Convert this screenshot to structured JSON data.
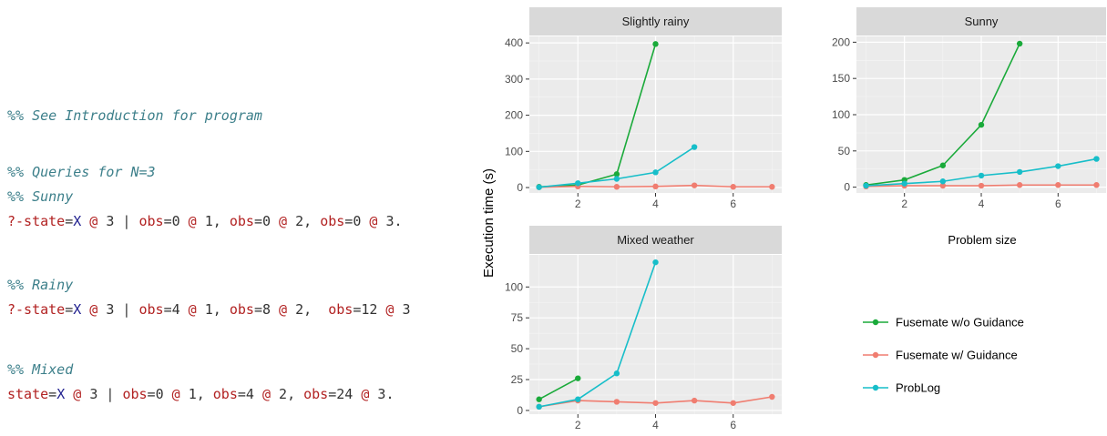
{
  "code": {
    "line1": "%% See Introduction for program",
    "line2": "%% Queries for N=3",
    "line3": "%% Sunny",
    "line5": "%% Rainy",
    "line7": "%% Mixed",
    "q_sunny": [
      "?-state",
      "=",
      "X",
      " @ ",
      "3",
      " | ",
      "obs",
      "=",
      "0",
      " @ ",
      "1",
      ", ",
      "obs",
      "=",
      "0",
      " @ ",
      "2",
      ", ",
      "obs",
      "=",
      "0",
      " @ ",
      "3",
      "."
    ],
    "q_rainy": [
      "?-state",
      "=",
      "X",
      " @ ",
      "3",
      " | ",
      "obs",
      "=",
      "4",
      " @ ",
      "1",
      ", ",
      "obs",
      "=",
      "8",
      " @ ",
      "2",
      ",  ",
      "obs",
      "=",
      "12",
      " @ ",
      "3"
    ],
    "q_mixed": [
      "state",
      "=",
      "X",
      " @ ",
      "3",
      " | ",
      "obs",
      "=",
      "0",
      " @ ",
      "1",
      ", ",
      "obs",
      "=",
      "4",
      " @ ",
      "2",
      ", ",
      "obs",
      "=",
      "24",
      " @ ",
      "3",
      "."
    ]
  },
  "colors": {
    "green": "#1aaa3a",
    "red": "#f07d70",
    "teal": "#17bec9",
    "panel_bg": "#ebebeb",
    "strip_bg": "#d9d9d9"
  },
  "chart_data": {
    "type": "line",
    "ylabel": "Execution time (s)",
    "xlabel": "Problem size",
    "legend": [
      {
        "name": "Fusemate w/o Guidance",
        "color": "#1aaa3a"
      },
      {
        "name": "Fusemate w/ Guidance",
        "color": "#f07d70"
      },
      {
        "name": "ProbLog",
        "color": "#17bec9"
      }
    ],
    "xlim": [
      0.75,
      7.25
    ],
    "xticks": [
      2,
      4,
      6
    ],
    "panels": [
      {
        "title": "Slightly rainy",
        "ylim": [
          -15,
          418
        ],
        "yticks": [
          0,
          100,
          200,
          300,
          400
        ],
        "series": [
          {
            "name": "Fusemate w/o Guidance",
            "x": [
              1,
              2,
              3,
              4
            ],
            "y": [
              2,
              7,
              37,
              397
            ]
          },
          {
            "name": "Fusemate w/ Guidance",
            "x": [
              1,
              2,
              3,
              4,
              5,
              6,
              7
            ],
            "y": [
              1,
              3,
              2,
              3,
              6,
              2,
              2
            ]
          },
          {
            "name": "ProbLog",
            "x": [
              1,
              2,
              3,
              4,
              5
            ],
            "y": [
              1,
              12,
              24,
              42,
              112
            ]
          }
        ]
      },
      {
        "title": "Sunny",
        "ylim": [
          -8,
          208
        ],
        "yticks": [
          0,
          50,
          100,
          150,
          200
        ],
        "series": [
          {
            "name": "Fusemate w/o Guidance",
            "x": [
              1,
              2,
              3,
              4,
              5
            ],
            "y": [
              3,
              10,
              30,
              86,
              198
            ]
          },
          {
            "name": "Fusemate w/ Guidance",
            "x": [
              1,
              2,
              3,
              4,
              5,
              6,
              7
            ],
            "y": [
              1,
              2,
              2,
              2,
              3,
              3,
              3
            ]
          },
          {
            "name": "ProbLog",
            "x": [
              1,
              2,
              3,
              4,
              5,
              6,
              7
            ],
            "y": [
              2,
              5,
              8,
              16,
              21,
              29,
              39
            ]
          }
        ]
      },
      {
        "title": "Mixed weather",
        "ylim": [
          -3,
          126
        ],
        "yticks": [
          0,
          25,
          50,
          75,
          100
        ],
        "series": [
          {
            "name": "Fusemate w/o Guidance",
            "x": [
              1,
              2
            ],
            "y": [
              9,
              26
            ]
          },
          {
            "name": "Fusemate w/ Guidance",
            "x": [
              1,
              2,
              3,
              4,
              5,
              6,
              7
            ],
            "y": [
              3,
              8,
              7,
              6,
              8,
              6,
              11
            ]
          },
          {
            "name": "ProbLog",
            "x": [
              1,
              2,
              3,
              4
            ],
            "y": [
              3,
              9,
              30,
              120
            ]
          }
        ]
      }
    ]
  }
}
